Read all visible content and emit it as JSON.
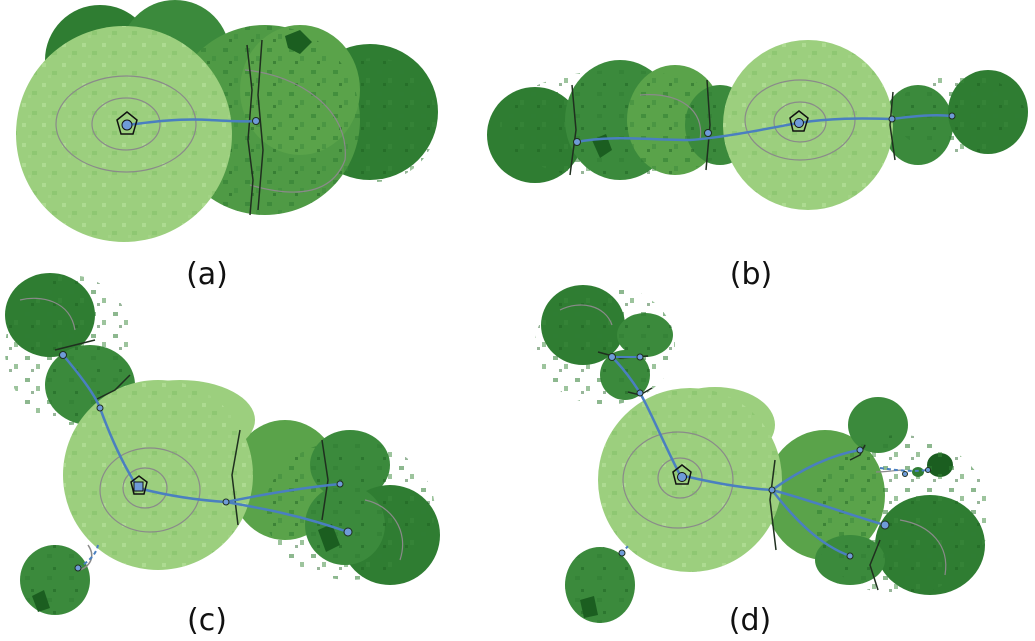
{
  "panels": [
    {
      "id": "a",
      "label": "(a)"
    },
    {
      "id": "b",
      "label": "(b)"
    },
    {
      "id": "c",
      "label": "(c)"
    },
    {
      "id": "d",
      "label": "(d)"
    }
  ],
  "colors": {
    "light_region": "#9ccf7e",
    "mid_region": "#5aa34a",
    "dark_region": "#2f7d32",
    "darkest_region": "#1b5e20",
    "contour": "#8a8a8a",
    "boundary": "#1f2f1f",
    "path": "#4a7fc0",
    "node": "#6f9bd8",
    "background": "#ffffff"
  }
}
